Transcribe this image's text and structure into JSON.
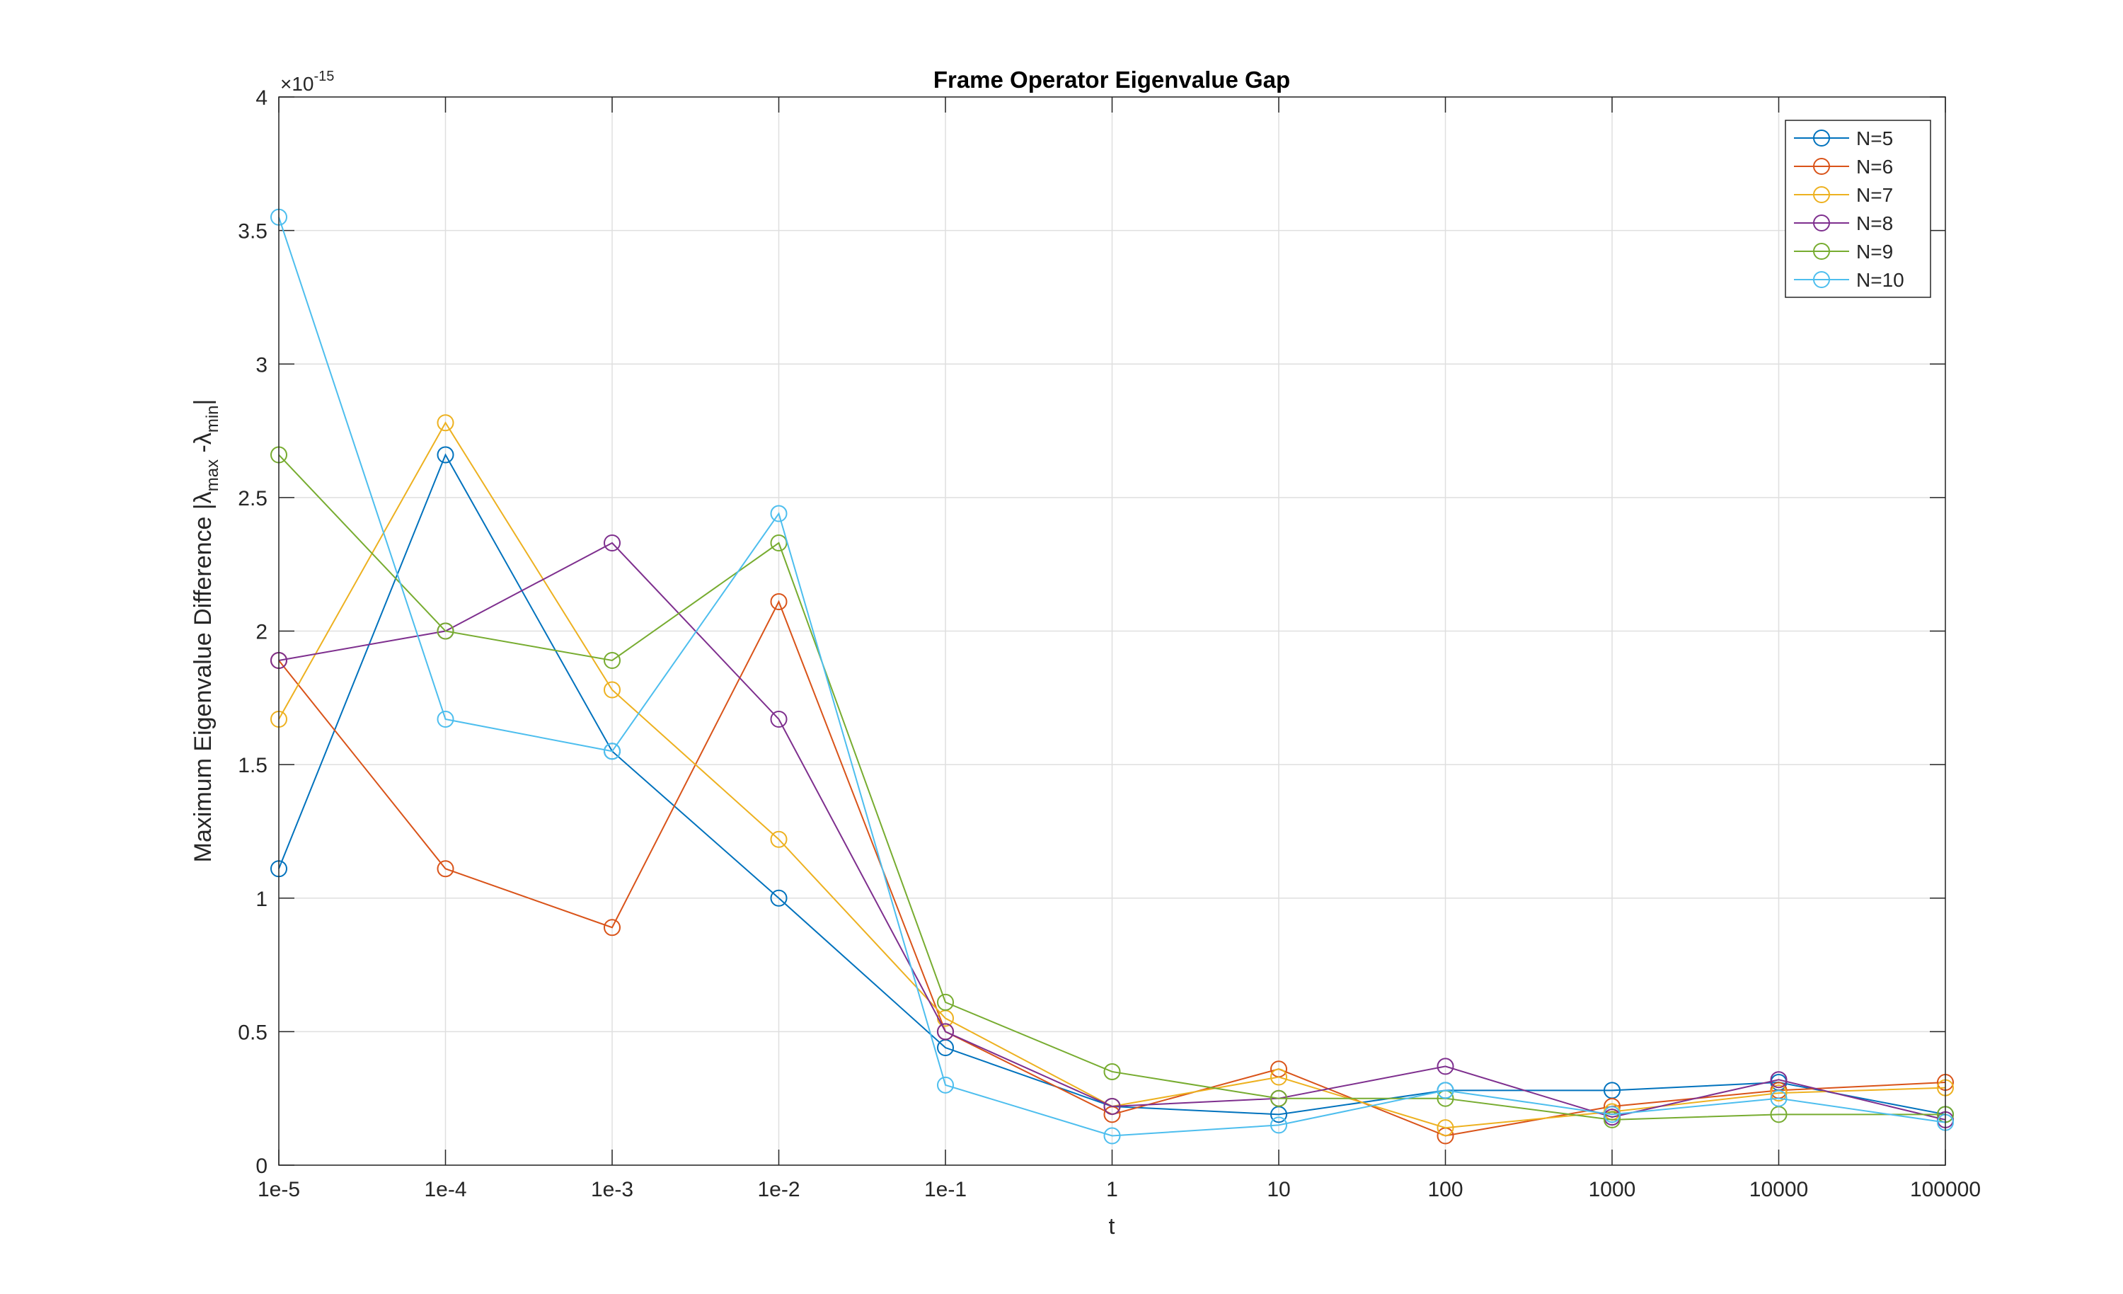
{
  "chart_data": {
    "type": "line",
    "title": "Frame Operator Eigenvalue Gap",
    "xlabel": "t",
    "ylabel": {
      "main": "Maximum Eigenvalue Difference |λ",
      "sub1": "max",
      "mid": " -λ",
      "sub2": "min",
      "end": "|"
    },
    "exponent": {
      "base": "×10",
      "power": "-15"
    },
    "categories": [
      "1e-5",
      "1e-4",
      "1e-3",
      "1e-2",
      "1e-1",
      "1",
      "10",
      "100",
      "1000",
      "10000",
      "100000"
    ],
    "yticks": [
      "0",
      "0.5",
      "1",
      "1.5",
      "2",
      "2.5",
      "3",
      "3.5",
      "4"
    ],
    "ylim": [
      0,
      4
    ],
    "grid": true,
    "legend_position": "top-right",
    "series": [
      {
        "name": "N=5",
        "color": "#0072BD",
        "values": [
          1.11,
          2.66,
          1.55,
          1.0,
          0.44,
          0.22,
          0.19,
          0.28,
          0.28,
          0.31,
          0.19
        ]
      },
      {
        "name": "N=6",
        "color": "#D95319",
        "values": [
          1.89,
          1.11,
          0.89,
          2.11,
          0.5,
          0.19,
          0.36,
          0.11,
          0.22,
          0.28,
          0.31
        ]
      },
      {
        "name": "N=7",
        "color": "#EDB120",
        "values": [
          1.67,
          2.78,
          1.78,
          1.22,
          0.55,
          0.22,
          0.33,
          0.14,
          0.2,
          0.27,
          0.29
        ]
      },
      {
        "name": "N=8",
        "color": "#7E2F8E",
        "values": [
          1.89,
          2.0,
          2.33,
          1.67,
          0.5,
          0.22,
          0.25,
          0.37,
          0.18,
          0.32,
          0.17
        ]
      },
      {
        "name": "N=9",
        "color": "#77AC30",
        "values": [
          2.66,
          2.0,
          1.89,
          2.33,
          0.61,
          0.35,
          0.25,
          0.25,
          0.17,
          0.19,
          0.19
        ]
      },
      {
        "name": "N=10",
        "color": "#4DBEEE",
        "values": [
          3.55,
          1.67,
          1.55,
          2.44,
          0.3,
          0.11,
          0.15,
          0.28,
          0.19,
          0.25,
          0.16
        ]
      }
    ]
  }
}
